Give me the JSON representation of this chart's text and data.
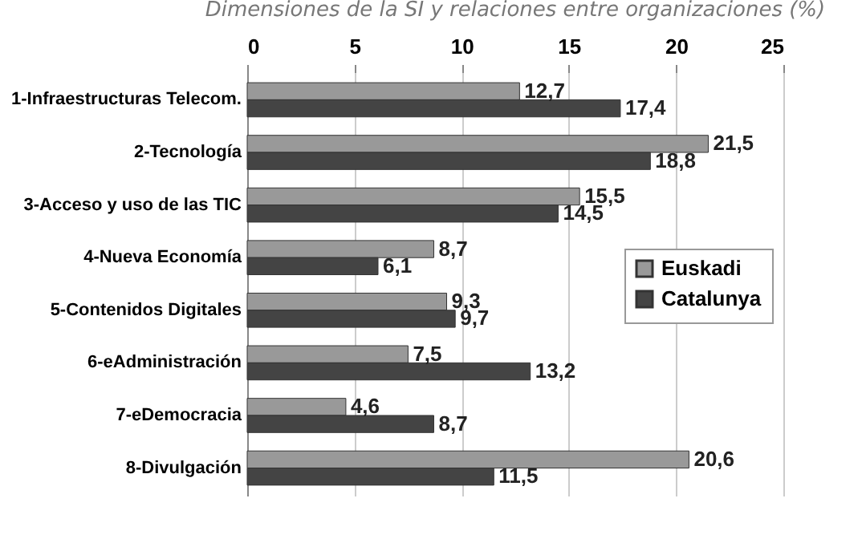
{
  "chart_data": {
    "type": "bar",
    "orientation": "horizontal",
    "title": "Dimensiones de la SI y relaciones entre organizaciones (%)",
    "categories": [
      "1-Infraestructuras Telecom.",
      "2-Tecnología",
      "3-Acceso y uso de las TIC",
      "4-Nueva Economía",
      "5-Contenidos Digitales",
      "6-eAdministración",
      "7-eDemocracia",
      "8-Divulgación"
    ],
    "series": [
      {
        "name": "Euskadi",
        "color": "#999999",
        "values": [
          12.7,
          21.5,
          15.5,
          8.7,
          9.3,
          7.5,
          4.6,
          20.6
        ],
        "value_labels": [
          "12,7",
          "21,5",
          "15,5",
          "8,7",
          "9,3",
          "7,5",
          "4,6",
          "20,6"
        ]
      },
      {
        "name": "Catalunya",
        "color": "#444444",
        "values": [
          17.4,
          18.8,
          14.5,
          6.1,
          9.7,
          13.2,
          8.7,
          11.5
        ],
        "value_labels": [
          "17,4",
          "18,8",
          "14,5",
          "6,1",
          "9,7",
          "13,2",
          "8,7",
          "11,5"
        ]
      }
    ],
    "xlim": [
      0,
      25
    ],
    "xticks": [
      0,
      5,
      10,
      15,
      20,
      25
    ],
    "grid": "x",
    "legend": "right"
  }
}
